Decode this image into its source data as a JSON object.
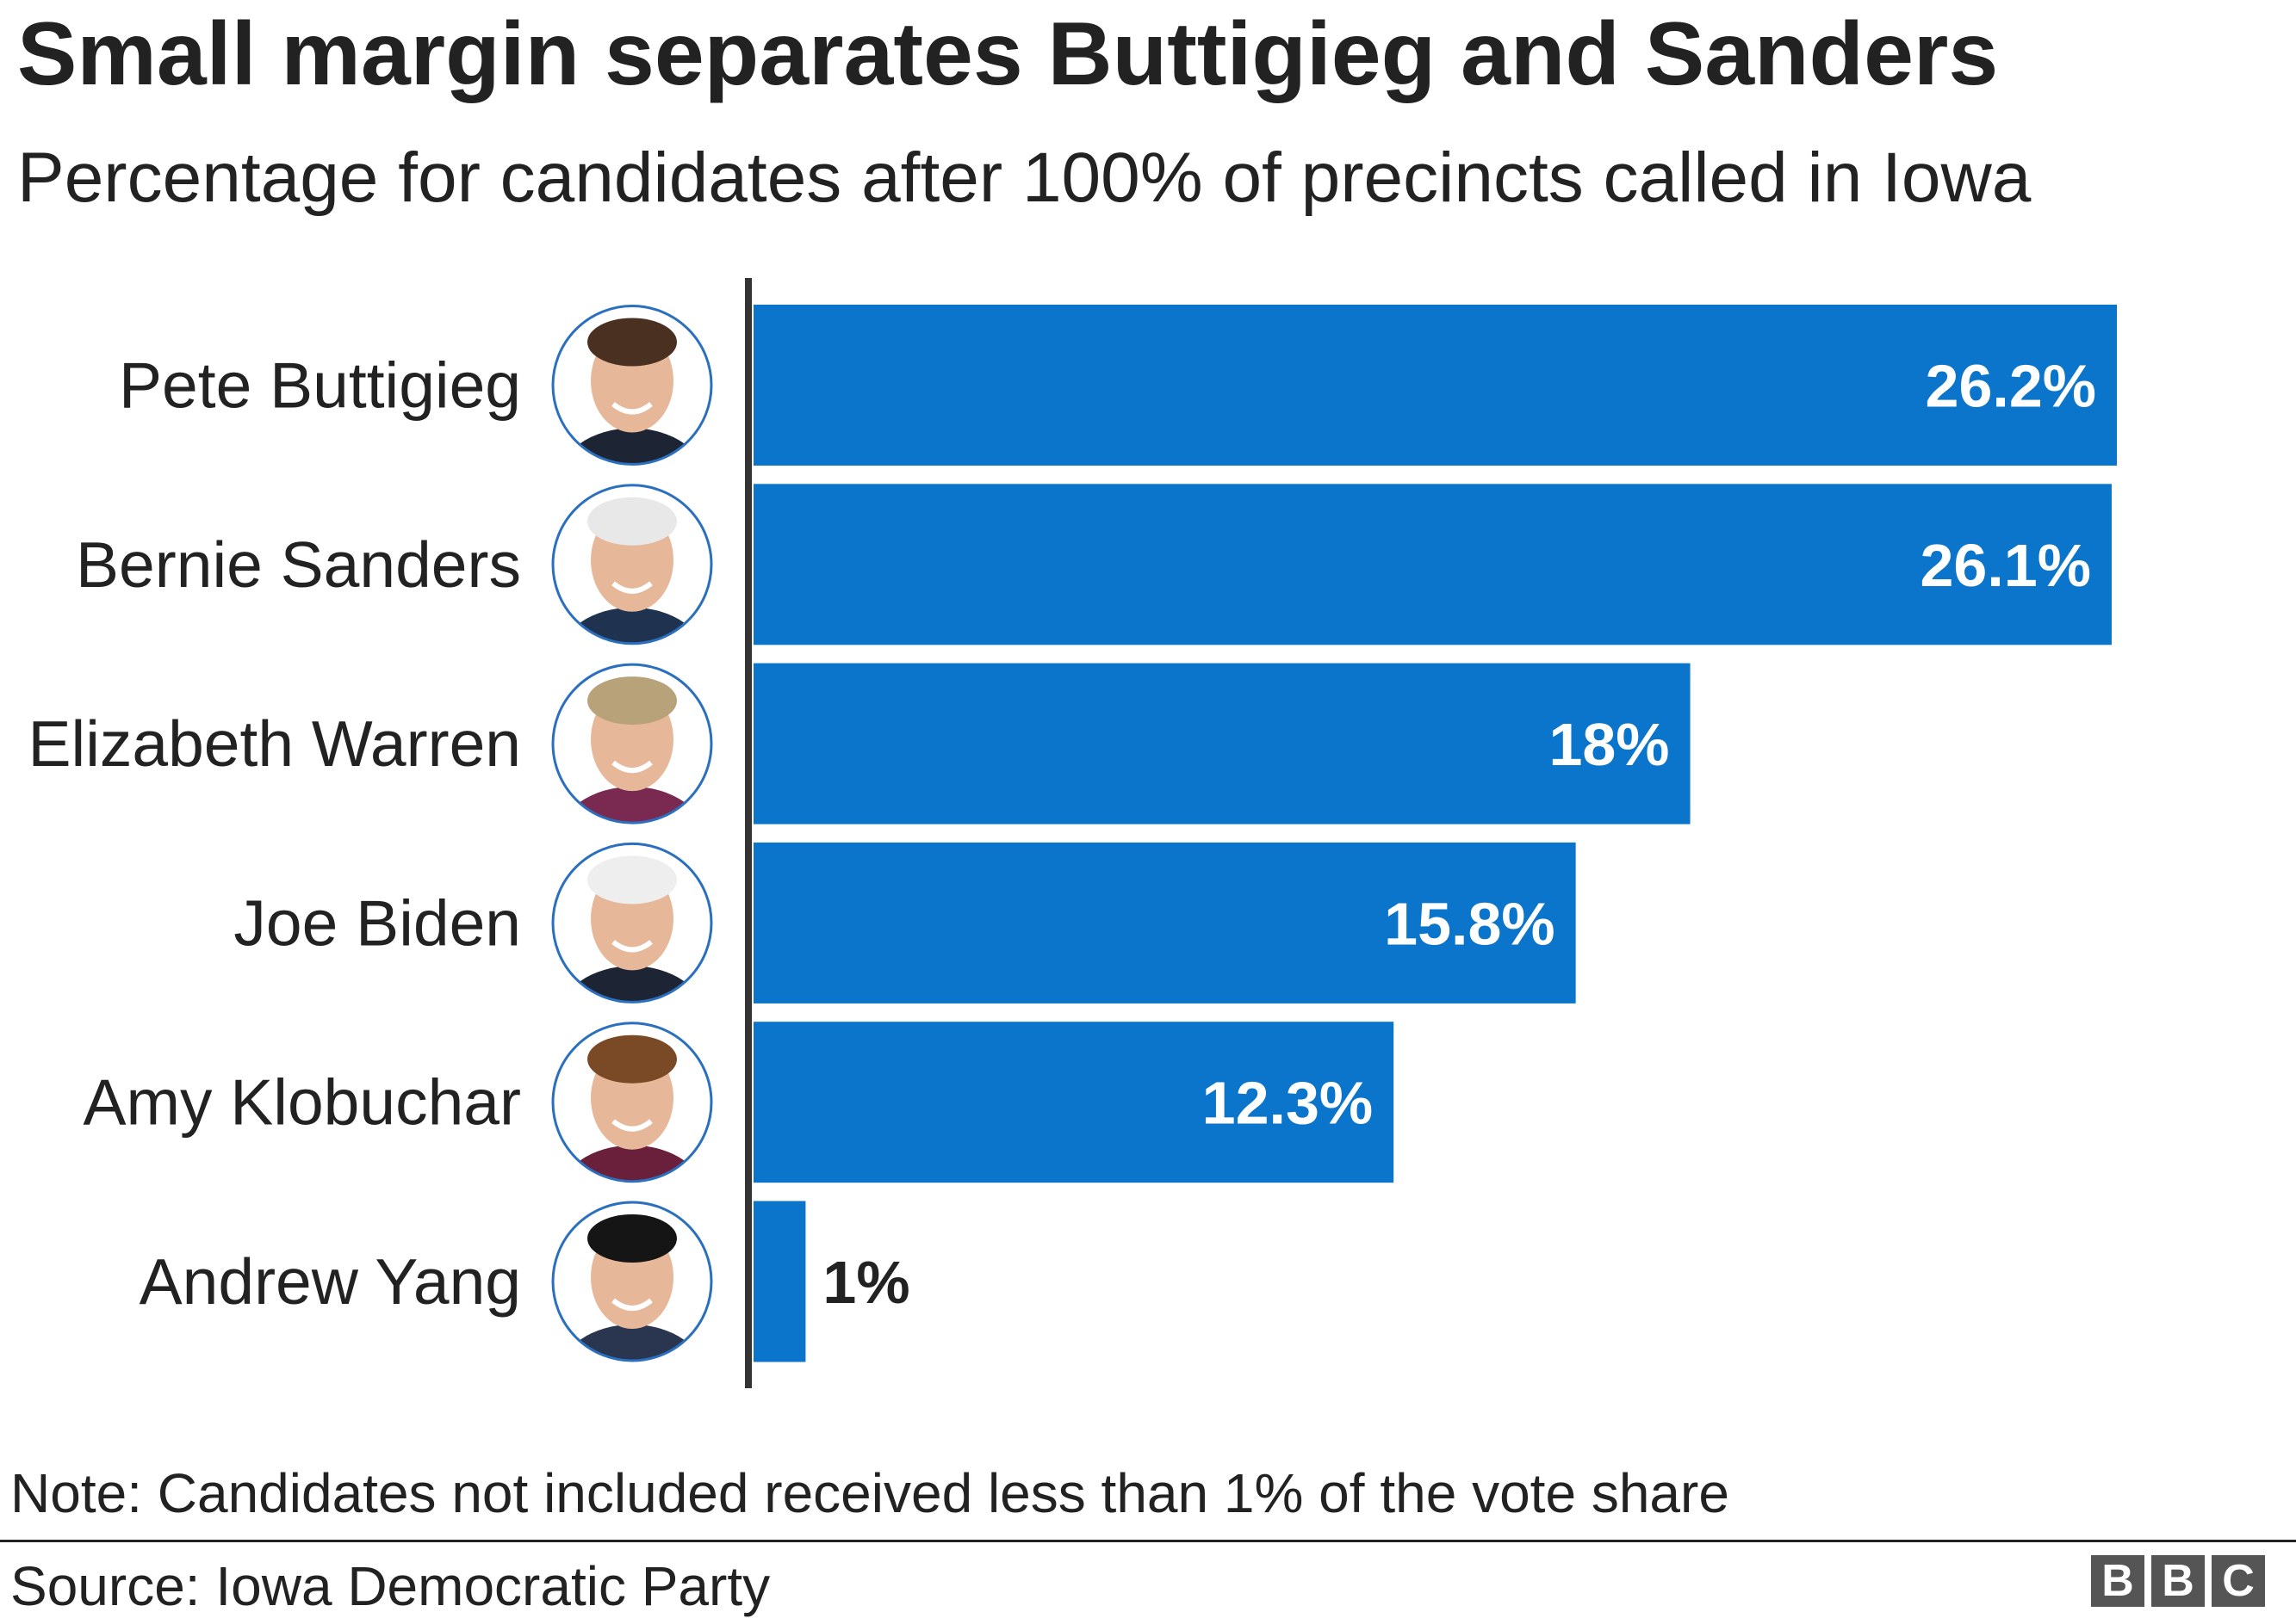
{
  "title": "Small margin separates Buttigieg and Sanders",
  "subtitle": "Percentage for candidates after 100% of precincts called in Iowa",
  "note": "Note: Candidates not included received less than 1% of the vote share",
  "source": "Source: Iowa Democratic Party",
  "logo": [
    "B",
    "B",
    "C"
  ],
  "colors": {
    "bar": "#0a75ca",
    "axis": "#333333",
    "ring": "#2b6fbf"
  },
  "chart_data": {
    "type": "bar",
    "orientation": "horizontal",
    "title": "Small margin separates Buttigieg and Sanders",
    "subtitle": "Percentage for candidates after 100% of precincts called in Iowa",
    "categories": [
      "Pete Buttigieg",
      "Bernie Sanders",
      "Elizabeth Warren",
      "Joe Biden",
      "Amy Klobuchar",
      "Andrew Yang"
    ],
    "values": [
      26.2,
      26.1,
      18,
      15.8,
      12.3,
      1
    ],
    "labels": [
      "26.2%",
      "26.1%",
      "18%",
      "15.8%",
      "12.3%",
      "1%"
    ],
    "xlim": [
      0,
      26.2
    ],
    "unit": "%",
    "grid": false
  }
}
